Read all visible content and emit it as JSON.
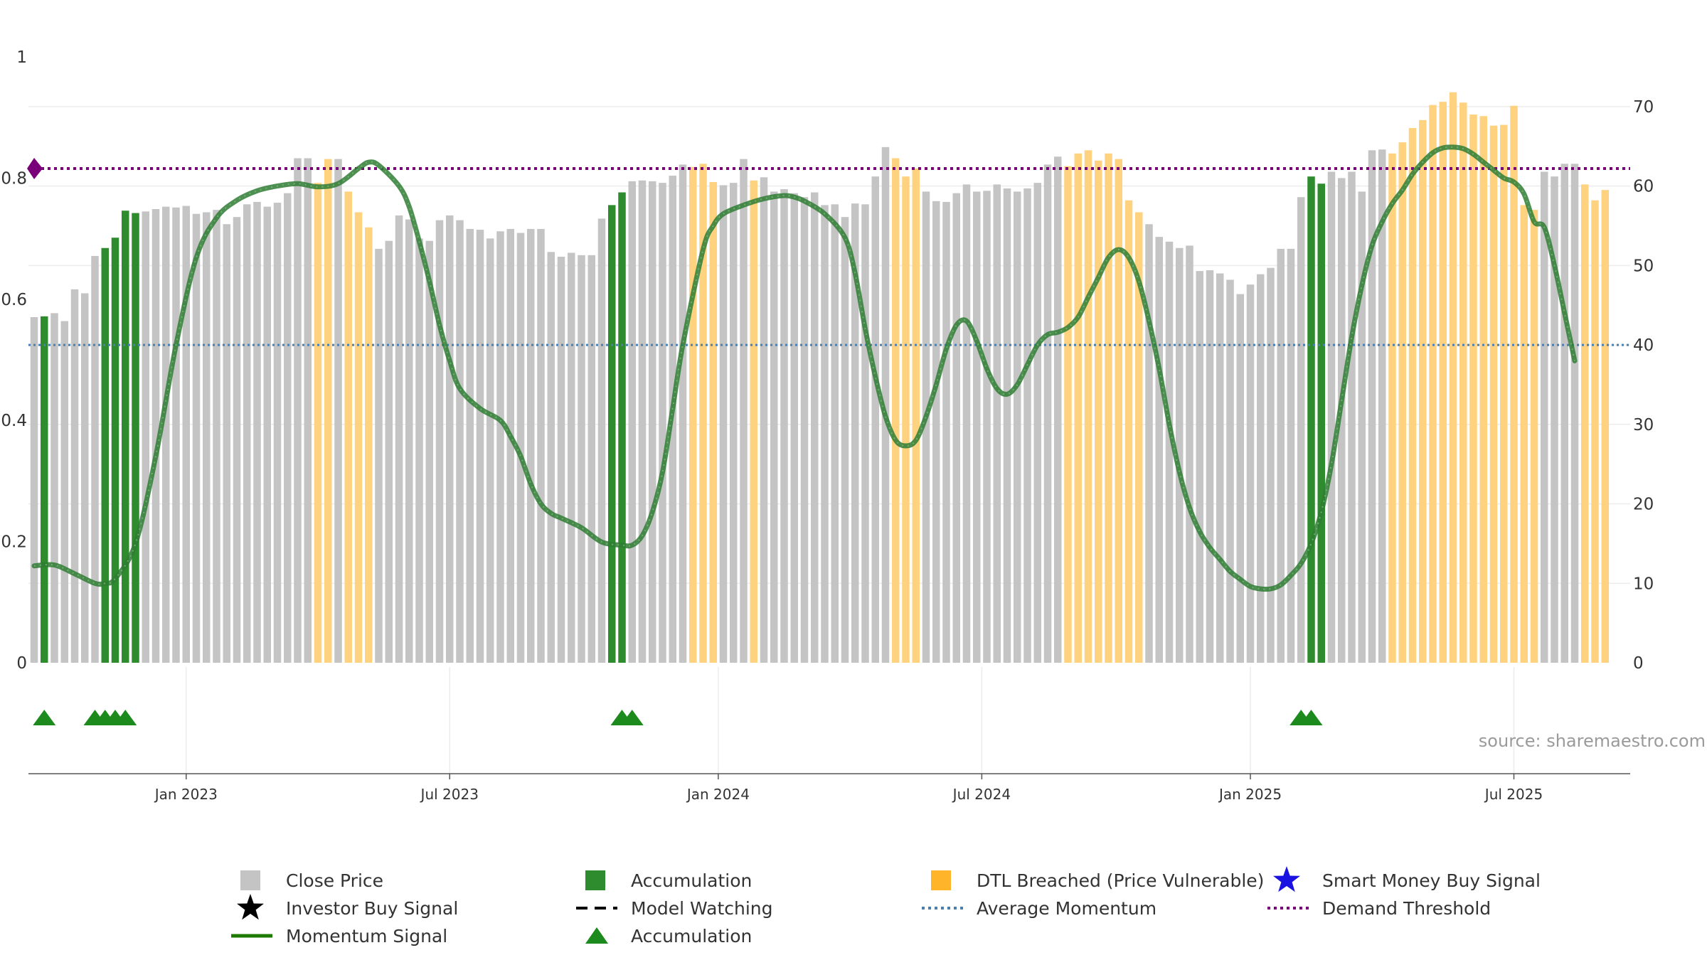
{
  "source": "source: sharemaestro.com",
  "colors": {
    "price": "#c4c4c4",
    "accumulation": "#2e8b2e",
    "dtl": "#ffd27f",
    "momentum": "#2e7d32",
    "momentum_dark": "#1f7a00",
    "average": "#4a7fb0",
    "threshold": "#7a007a",
    "triangle": "#1c8a1c",
    "smart_money": "#1a12e0"
  },
  "legend": [
    {
      "label": "Close Price",
      "icon": "grey-square"
    },
    {
      "label": "Accumulation",
      "icon": "green-square"
    },
    {
      "label": "DTL Breached (Price Vulnerable)",
      "icon": "orange-square"
    },
    {
      "label": "Smart Money Buy Signal",
      "icon": "blue-star"
    },
    {
      "label": "Investor Buy Signal",
      "icon": "black-star"
    },
    {
      "label": "Model Watching",
      "icon": "black-dashed-line"
    },
    {
      "label": "Average Momentum",
      "icon": "blue-dotted-line"
    },
    {
      "label": "Demand Threshold",
      "icon": "purple-dotted-line"
    },
    {
      "label": "Momentum Signal",
      "icon": "green-line"
    },
    {
      "label": "Accumulation",
      "icon": "green-triangle"
    }
  ],
  "chart_data": {
    "type": "bar",
    "left_axis": {
      "ticks": [
        "0",
        "0.2",
        "0.4",
        "0.6",
        "0.8",
        "1"
      ],
      "range": [
        0,
        1
      ]
    },
    "right_axis": {
      "ticks": [
        "0",
        "10",
        "20",
        "30",
        "40",
        "50",
        "60",
        "70"
      ],
      "range": [
        0,
        75
      ]
    },
    "x_ticks": [
      {
        "label": "Jan 2023",
        "week": 15
      },
      {
        "label": "Jul 2023",
        "week": 41
      },
      {
        "label": "Jan 2024",
        "week": 67.5
      },
      {
        "label": "Jul 2024",
        "week": 93.5
      },
      {
        "label": "Jan 2025",
        "week": 120
      },
      {
        "label": "Jul 2025",
        "week": 146
      }
    ],
    "price_close": [
      43.5,
      43.6,
      44,
      43,
      47,
      46.5,
      51.2,
      52.2,
      53.5,
      56.9,
      56.6,
      56.8,
      57.1,
      57.4,
      57.3,
      57.5,
      56.5,
      56.7,
      57,
      55.2,
      56.1,
      57.7,
      58,
      57.4,
      57.9,
      59.1,
      63.5,
      63.5,
      60.4,
      63.4,
      63.4,
      59.3,
      56.7,
      54.8,
      52.1,
      53.1,
      56.3,
      55.8,
      53.4,
      53.1,
      55.7,
      56.3,
      55.7,
      54.6,
      54.5,
      53.4,
      54.3,
      54.6,
      54.1,
      54.6,
      54.6,
      51.7,
      51.1,
      51.6,
      51.3,
      51.3,
      55.9,
      57.6,
      59.2,
      60.6,
      60.7,
      60.6,
      60.4,
      61.3,
      62.7,
      62.4,
      62.8,
      60.5,
      60.1,
      60.4,
      63.4,
      60.7,
      61.1,
      59.3,
      59.6,
      59.1,
      58.6,
      59.2,
      57.6,
      57.7,
      56.1,
      57.8,
      57.7,
      61.2,
      64.9,
      63.5,
      61.2,
      62.2,
      59.3,
      58.1,
      58,
      59.1,
      60.2,
      59.3,
      59.4,
      60.2,
      59.7,
      59.3,
      59.7,
      60.4,
      62.7,
      63.7,
      62.5,
      64.1,
      64.5,
      63.2,
      64.1,
      63.4,
      58.2,
      56.7,
      55.2,
      53.6,
      53,
      52.2,
      52.5,
      49.3,
      49.4,
      49,
      48.2,
      46.4,
      47.6,
      48.9,
      49.7,
      52.1,
      52.1,
      58.6,
      61.2,
      60.3,
      61.8,
      61,
      61.8,
      59.3,
      64.5,
      64.6,
      64.1,
      65.5,
      67.3,
      68.3,
      70.2,
      70.6,
      71.8,
      70.5,
      69,
      68.8,
      67.6,
      67.7,
      70.1,
      57.6,
      57,
      61.8,
      61.2,
      62.8,
      62.8,
      60.2,
      58.2,
      59.5
    ],
    "bar_colors": "GAGGGGGAAAAGGGGGGGGGGGGGGGGGOOGOOOGGGGGGGGGGGGGGGGGGGGGGGAAGGGGGGOOOGGGOGGGGGGGGGGGGGOOOGGGGGGGGGGGGGGOOOOOOOOGGGGGGGGGGGGGGGGAAGGGGGGOOOOOOOOOOOOOOOGGGGOOOGG",
    "momentum_signal": [
      [
        0,
        12.2
      ],
      [
        2,
        12.3
      ],
      [
        4,
        11.2
      ],
      [
        6,
        10
      ],
      [
        7,
        10
      ],
      [
        8,
        10.6
      ],
      [
        10,
        15
      ],
      [
        12,
        26
      ],
      [
        14,
        40
      ],
      [
        16,
        51
      ],
      [
        18,
        56
      ],
      [
        20,
        58.2
      ],
      [
        22,
        59.4
      ],
      [
        24,
        60
      ],
      [
        26,
        60.3
      ],
      [
        28,
        59.9
      ],
      [
        30,
        60.3
      ],
      [
        32,
        62.2
      ],
      [
        33,
        63
      ],
      [
        34,
        62.6
      ],
      [
        36,
        60
      ],
      [
        37,
        57.4
      ],
      [
        38,
        53
      ],
      [
        39,
        48
      ],
      [
        40,
        42.5
      ],
      [
        41,
        38
      ],
      [
        42,
        34.5
      ],
      [
        44,
        32
      ],
      [
        46,
        30.5
      ],
      [
        47,
        28.5
      ],
      [
        48,
        26
      ],
      [
        49,
        22.5
      ],
      [
        50,
        20
      ],
      [
        51,
        18.8
      ],
      [
        52,
        18.2
      ],
      [
        54,
        17
      ],
      [
        56,
        15.2
      ],
      [
        58,
        14.8
      ],
      [
        59,
        14.8
      ],
      [
        60,
        16
      ],
      [
        61,
        19
      ],
      [
        62,
        24
      ],
      [
        63,
        32
      ],
      [
        64,
        40
      ],
      [
        66,
        52
      ],
      [
        67,
        55
      ],
      [
        68,
        56.5
      ],
      [
        70,
        57.6
      ],
      [
        72,
        58.4
      ],
      [
        74,
        58.8
      ],
      [
        75,
        58.6
      ],
      [
        76,
        58.1
      ],
      [
        78,
        56.5
      ],
      [
        80,
        53.5
      ],
      [
        81,
        49
      ],
      [
        82,
        42
      ],
      [
        83,
        36
      ],
      [
        84,
        31
      ],
      [
        85,
        28
      ],
      [
        86,
        27.3
      ],
      [
        87,
        28
      ],
      [
        88,
        31
      ],
      [
        89,
        35
      ],
      [
        90,
        39.5
      ],
      [
        91,
        42.5
      ],
      [
        92,
        43
      ],
      [
        93,
        40.5
      ],
      [
        94,
        37
      ],
      [
        95,
        34.5
      ],
      [
        96,
        33.8
      ],
      [
        97,
        35
      ],
      [
        98,
        37.5
      ],
      [
        99,
        40
      ],
      [
        100,
        41.3
      ],
      [
        101,
        41.6
      ],
      [
        102,
        42.2
      ],
      [
        103,
        43.5
      ],
      [
        104,
        46
      ],
      [
        105,
        48.5
      ],
      [
        106,
        51
      ],
      [
        107,
        52
      ],
      [
        108,
        51
      ],
      [
        109,
        48
      ],
      [
        110,
        43
      ],
      [
        111,
        37
      ],
      [
        112,
        30
      ],
      [
        113,
        24
      ],
      [
        114,
        19.5
      ],
      [
        115,
        16.5
      ],
      [
        116,
        14.5
      ],
      [
        117,
        13
      ],
      [
        118,
        11.5
      ],
      [
        119,
        10.5
      ],
      [
        120,
        9.6
      ],
      [
        121,
        9.3
      ],
      [
        122,
        9.3
      ],
      [
        123,
        9.8
      ],
      [
        124,
        11
      ],
      [
        125,
        12.5
      ],
      [
        126,
        15
      ],
      [
        127,
        19
      ],
      [
        128,
        25
      ],
      [
        129,
        33
      ],
      [
        130,
        41
      ],
      [
        131,
        47.5
      ],
      [
        132,
        52.5
      ],
      [
        133,
        55.5
      ],
      [
        134,
        57.8
      ],
      [
        135,
        59.5
      ],
      [
        136,
        61.5
      ],
      [
        137,
        63
      ],
      [
        138,
        64.2
      ],
      [
        139,
        64.8
      ],
      [
        140,
        64.9
      ],
      [
        141,
        64.7
      ],
      [
        142,
        64
      ],
      [
        143,
        63
      ],
      [
        144,
        62
      ],
      [
        145,
        61
      ],
      [
        146,
        60.5
      ],
      [
        147,
        59
      ],
      [
        148,
        55.5
      ],
      [
        149,
        54.8
      ],
      [
        150,
        50
      ],
      [
        151,
        44
      ],
      [
        152,
        38
      ]
    ],
    "average_momentum": 40,
    "demand_threshold": 62.2,
    "accumulation_triangle_weeks": [
      1,
      6,
      7,
      8,
      9,
      58,
      59,
      125,
      126
    ],
    "grid": true
  }
}
